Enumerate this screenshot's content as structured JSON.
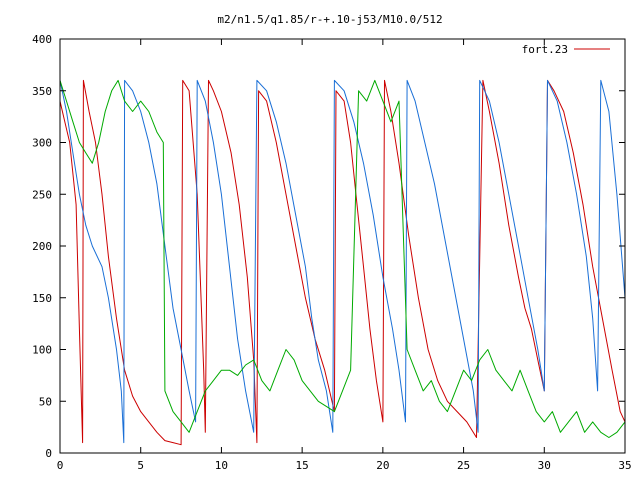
{
  "chart_data": {
    "type": "line",
    "title": "m2/n1.5/q1.85/r-+.10-j53/M10.0/512",
    "xlabel": "",
    "ylabel": "",
    "xlim": [
      0,
      35
    ],
    "ylim": [
      0,
      400
    ],
    "x_ticks": [
      "0",
      "5",
      "10",
      "15",
      "20",
      "25",
      "30",
      "35"
    ],
    "y_ticks": [
      "0",
      "50",
      "100",
      "150",
      "200",
      "250",
      "300",
      "350",
      "400"
    ],
    "grid": false,
    "legend_position": "top-right",
    "series": [
      {
        "name": "fort.23",
        "color": "#cc0000",
        "points": [
          [
            0.0,
            340
          ],
          [
            0.3,
            320
          ],
          [
            0.6,
            300
          ],
          [
            1.0,
            240
          ],
          [
            1.2,
            120
          ],
          [
            1.4,
            10
          ],
          [
            1.45,
            360
          ],
          [
            1.8,
            330
          ],
          [
            2.2,
            300
          ],
          [
            2.6,
            250
          ],
          [
            3.0,
            190
          ],
          [
            3.5,
            130
          ],
          [
            4.0,
            80
          ],
          [
            4.5,
            55
          ],
          [
            5.0,
            40
          ],
          [
            5.5,
            30
          ],
          [
            6.0,
            20
          ],
          [
            6.5,
            12
          ],
          [
            7.0,
            10
          ],
          [
            7.5,
            8
          ],
          [
            7.6,
            360
          ],
          [
            8.0,
            350
          ],
          [
            8.5,
            250
          ],
          [
            8.9,
            80
          ],
          [
            9.0,
            20
          ],
          [
            9.2,
            360
          ],
          [
            9.5,
            350
          ],
          [
            10.0,
            330
          ],
          [
            10.6,
            290
          ],
          [
            11.1,
            240
          ],
          [
            11.6,
            170
          ],
          [
            12.0,
            90
          ],
          [
            12.2,
            10
          ],
          [
            12.3,
            350
          ],
          [
            12.8,
            340
          ],
          [
            13.4,
            300
          ],
          [
            14.0,
            250
          ],
          [
            14.6,
            200
          ],
          [
            15.2,
            150
          ],
          [
            15.8,
            110
          ],
          [
            16.4,
            80
          ],
          [
            17.0,
            40
          ],
          [
            17.1,
            350
          ],
          [
            17.6,
            340
          ],
          [
            18.0,
            300
          ],
          [
            18.4,
            240
          ],
          [
            18.8,
            180
          ],
          [
            19.2,
            120
          ],
          [
            19.6,
            70
          ],
          [
            20.0,
            30
          ],
          [
            20.1,
            360
          ],
          [
            20.5,
            330
          ],
          [
            21.0,
            280
          ],
          [
            21.6,
            210
          ],
          [
            22.2,
            150
          ],
          [
            22.8,
            100
          ],
          [
            23.4,
            70
          ],
          [
            24.0,
            50
          ],
          [
            24.6,
            40
          ],
          [
            25.2,
            30
          ],
          [
            25.8,
            15
          ],
          [
            26.2,
            360
          ],
          [
            26.6,
            330
          ],
          [
            27.2,
            280
          ],
          [
            27.8,
            220
          ],
          [
            28.4,
            170
          ],
          [
            28.8,
            140
          ],
          [
            29.2,
            120
          ],
          [
            29.6,
            90
          ],
          [
            30.0,
            60
          ],
          [
            30.2,
            360
          ],
          [
            30.6,
            350
          ],
          [
            31.2,
            330
          ],
          [
            31.8,
            290
          ],
          [
            32.4,
            240
          ],
          [
            33.0,
            180
          ],
          [
            33.6,
            130
          ],
          [
            34.2,
            80
          ],
          [
            34.7,
            40
          ],
          [
            35.0,
            30
          ]
        ]
      },
      {
        "name": "",
        "color": "#1a6fd6",
        "points": [
          [
            0.0,
            360
          ],
          [
            0.4,
            330
          ],
          [
            0.8,
            290
          ],
          [
            1.2,
            250
          ],
          [
            1.6,
            220
          ],
          [
            2.0,
            200
          ],
          [
            2.6,
            180
          ],
          [
            3.0,
            150
          ],
          [
            3.5,
            100
          ],
          [
            3.8,
            60
          ],
          [
            3.95,
            10
          ],
          [
            4.0,
            360
          ],
          [
            4.5,
            350
          ],
          [
            5.0,
            330
          ],
          [
            5.5,
            300
          ],
          [
            6.0,
            260
          ],
          [
            6.5,
            200
          ],
          [
            7.0,
            140
          ],
          [
            7.5,
            100
          ],
          [
            8.0,
            60
          ],
          [
            8.4,
            30
          ],
          [
            8.5,
            360
          ],
          [
            9.0,
            340
          ],
          [
            9.5,
            300
          ],
          [
            10.0,
            250
          ],
          [
            10.5,
            180
          ],
          [
            11.0,
            110
          ],
          [
            11.5,
            60
          ],
          [
            12.0,
            20
          ],
          [
            12.2,
            360
          ],
          [
            12.8,
            350
          ],
          [
            13.4,
            320
          ],
          [
            14.0,
            280
          ],
          [
            14.6,
            230
          ],
          [
            15.2,
            180
          ],
          [
            15.6,
            130
          ],
          [
            16.0,
            90
          ],
          [
            16.5,
            60
          ],
          [
            16.9,
            20
          ],
          [
            17.0,
            360
          ],
          [
            17.6,
            350
          ],
          [
            18.2,
            320
          ],
          [
            18.8,
            280
          ],
          [
            19.4,
            230
          ],
          [
            20.0,
            170
          ],
          [
            20.6,
            120
          ],
          [
            21.0,
            80
          ],
          [
            21.4,
            30
          ],
          [
            21.5,
            360
          ],
          [
            22.0,
            340
          ],
          [
            22.6,
            300
          ],
          [
            23.2,
            260
          ],
          [
            23.8,
            210
          ],
          [
            24.4,
            160
          ],
          [
            25.0,
            110
          ],
          [
            25.6,
            60
          ],
          [
            25.9,
            20
          ],
          [
            26.0,
            360
          ],
          [
            26.6,
            340
          ],
          [
            27.2,
            300
          ],
          [
            27.8,
            250
          ],
          [
            28.4,
            200
          ],
          [
            29.0,
            150
          ],
          [
            29.6,
            100
          ],
          [
            30.0,
            60
          ],
          [
            30.2,
            360
          ],
          [
            30.8,
            340
          ],
          [
            31.4,
            300
          ],
          [
            32.0,
            250
          ],
          [
            32.6,
            190
          ],
          [
            33.0,
            130
          ],
          [
            33.3,
            60
          ],
          [
            33.5,
            360
          ],
          [
            34.0,
            330
          ],
          [
            34.5,
            250
          ],
          [
            35.0,
            150
          ]
        ]
      },
      {
        "name": "",
        "color": "#00aa00",
        "points": [
          [
            0.0,
            360
          ],
          [
            0.4,
            340
          ],
          [
            0.8,
            320
          ],
          [
            1.2,
            300
          ],
          [
            1.6,
            290
          ],
          [
            2.0,
            280
          ],
          [
            2.4,
            300
          ],
          [
            2.8,
            330
          ],
          [
            3.2,
            350
          ],
          [
            3.6,
            360
          ],
          [
            4.0,
            340
          ],
          [
            4.5,
            330
          ],
          [
            5.0,
            340
          ],
          [
            5.5,
            330
          ],
          [
            6.0,
            310
          ],
          [
            6.4,
            300
          ],
          [
            6.5,
            60
          ],
          [
            7.0,
            40
          ],
          [
            7.5,
            30
          ],
          [
            8.0,
            20
          ],
          [
            8.5,
            40
          ],
          [
            9.0,
            60
          ],
          [
            9.5,
            70
          ],
          [
            10.0,
            80
          ],
          [
            10.5,
            80
          ],
          [
            11.0,
            75
          ],
          [
            11.5,
            85
          ],
          [
            12.0,
            90
          ],
          [
            12.5,
            70
          ],
          [
            13.0,
            60
          ],
          [
            13.5,
            80
          ],
          [
            14.0,
            100
          ],
          [
            14.5,
            90
          ],
          [
            15.0,
            70
          ],
          [
            15.5,
            60
          ],
          [
            16.0,
            50
          ],
          [
            16.5,
            45
          ],
          [
            17.0,
            40
          ],
          [
            17.5,
            60
          ],
          [
            18.0,
            80
          ],
          [
            18.5,
            350
          ],
          [
            19.0,
            340
          ],
          [
            19.5,
            360
          ],
          [
            20.0,
            340
          ],
          [
            20.5,
            320
          ],
          [
            21.0,
            340
          ],
          [
            21.5,
            100
          ],
          [
            22.0,
            80
          ],
          [
            22.5,
            60
          ],
          [
            23.0,
            70
          ],
          [
            23.5,
            50
          ],
          [
            24.0,
            40
          ],
          [
            24.5,
            60
          ],
          [
            25.0,
            80
          ],
          [
            25.5,
            70
          ],
          [
            26.0,
            90
          ],
          [
            26.5,
            100
          ],
          [
            27.0,
            80
          ],
          [
            27.5,
            70
          ],
          [
            28.0,
            60
          ],
          [
            28.5,
            80
          ],
          [
            29.0,
            60
          ],
          [
            29.5,
            40
          ],
          [
            30.0,
            30
          ],
          [
            30.5,
            40
          ],
          [
            31.0,
            20
          ],
          [
            31.5,
            30
          ],
          [
            32.0,
            40
          ],
          [
            32.5,
            20
          ],
          [
            33.0,
            30
          ],
          [
            33.5,
            20
          ],
          [
            34.0,
            15
          ],
          [
            34.5,
            20
          ],
          [
            35.0,
            30
          ]
        ]
      }
    ]
  }
}
